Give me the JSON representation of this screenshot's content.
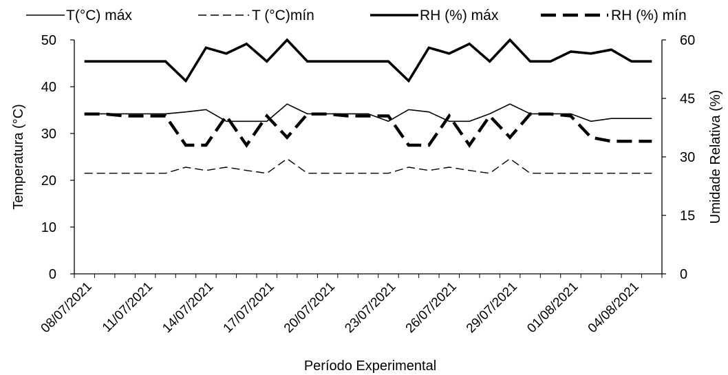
{
  "chart_data": {
    "type": "line",
    "title": "",
    "xlabel": "Período Experimental",
    "ylabel_left": "Temperatura (°C)",
    "ylabel_right": "Umidade Relativa (%)",
    "ylim_left": [
      0,
      50
    ],
    "ylim_right": [
      0,
      60
    ],
    "yticks_left": [
      "0",
      "10",
      "20",
      "30",
      "40",
      "50"
    ],
    "yticks_right": [
      "0",
      "15",
      "30",
      "45",
      "60"
    ],
    "x": [
      1,
      2,
      3,
      4,
      5,
      6,
      7,
      8,
      9,
      10,
      11,
      12,
      13,
      14,
      15,
      16,
      17,
      18,
      19,
      20,
      21,
      22,
      23,
      24,
      25,
      26,
      27,
      28,
      29
    ],
    "xtick_positions": [
      1,
      4,
      7,
      10,
      13,
      16,
      19,
      22,
      25,
      28
    ],
    "xtick_labels": [
      "08/07/2021",
      "11/07/2021",
      "14/07/2021",
      "17/07/2021",
      "20/07/2021",
      "23/07/2021",
      "26/07/2021",
      "29/07/2021",
      "01/08/2021",
      "04/08/2021"
    ],
    "grid": false,
    "legend_position": "top",
    "series": [
      {
        "name": "T(°C) máx",
        "axis": "left",
        "style": "solid-thin",
        "values": [
          34.2,
          34.2,
          34.2,
          34.2,
          34.2,
          34.6,
          35.1,
          32.6,
          32.6,
          32.6,
          36.3,
          34.2,
          34.2,
          34.2,
          34.2,
          32.6,
          35.1,
          34.6,
          32.6,
          32.6,
          34.2,
          36.3,
          34.2,
          34.2,
          34.2,
          32.6,
          33.2,
          33.2,
          33.2
        ]
      },
      {
        "name": "T (°C)mín",
        "axis": "left",
        "style": "dashed-thin",
        "values": [
          21.5,
          21.5,
          21.5,
          21.5,
          21.5,
          22.8,
          22.1,
          22.8,
          22.1,
          21.5,
          24.6,
          21.5,
          21.5,
          21.5,
          21.5,
          21.5,
          22.8,
          22.1,
          22.8,
          22.1,
          21.5,
          24.6,
          21.5,
          21.5,
          21.5,
          21.5,
          21.5,
          21.5,
          21.5
        ]
      },
      {
        "name": "RH  (%) máx",
        "axis": "right",
        "style": "solid-thick",
        "values": [
          54.5,
          54.5,
          54.5,
          54.5,
          54.5,
          49.5,
          58.0,
          56.5,
          59.0,
          54.5,
          60.0,
          54.5,
          54.5,
          54.5,
          54.5,
          54.5,
          49.5,
          58.0,
          56.5,
          59.0,
          54.5,
          60.0,
          54.5,
          54.5,
          57.0,
          56.5,
          57.5,
          54.5,
          54.5
        ]
      },
      {
        "name": "RH (%) mín",
        "axis": "right",
        "style": "dashed-thick",
        "values": [
          41.0,
          41.0,
          40.5,
          40.5,
          40.5,
          33.0,
          33.0,
          40.5,
          33.0,
          40.5,
          35.0,
          41.0,
          41.0,
          40.5,
          40.5,
          40.5,
          33.0,
          33.0,
          40.5,
          33.0,
          40.5,
          35.0,
          41.0,
          41.0,
          40.5,
          35.0,
          34.0,
          34.0,
          34.0
        ]
      }
    ]
  }
}
